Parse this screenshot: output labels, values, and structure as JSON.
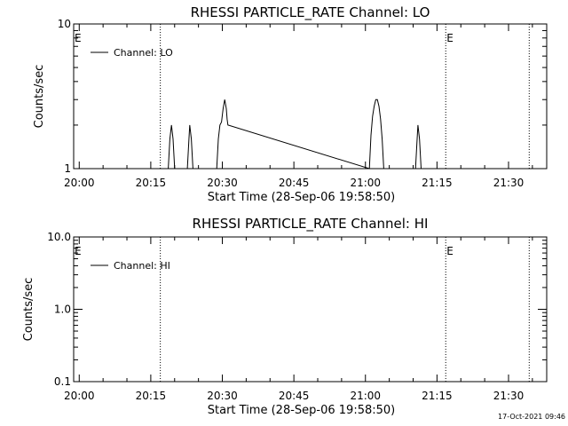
{
  "footer": {
    "timestamp": "17-Oct-2021 09:46"
  },
  "chart_data": [
    {
      "type": "line",
      "title": "RHESSI PARTICLE_RATE Channel: LO",
      "xlabel": "Start Time (28-Sep-06 19:58:50)",
      "ylabel": "Counts/sec",
      "y_scale": "log",
      "ylim": [
        1,
        10
      ],
      "y_ticks": [
        {
          "v": 1,
          "label": "1"
        },
        {
          "v": 10,
          "label": "10"
        }
      ],
      "xlim": [
        "19:58:50",
        "21:38:00"
      ],
      "x_ticks": [
        "20:00",
        "20:15",
        "20:30",
        "20:45",
        "21:00",
        "21:15",
        "21:30"
      ],
      "event_lines": [
        "20:17:00",
        "21:16:50",
        "21:34:20"
      ],
      "event_markers": [
        {
          "x": "19:58:50",
          "label": "E"
        },
        {
          "x": "21:16:50",
          "label": "E"
        }
      ],
      "series": [
        {
          "name": "Channel: LO",
          "color": "#000000",
          "points": [
            [
              "19:58:50",
              1
            ],
            [
              "20:18:40",
              1
            ],
            [
              "20:19:00",
              1.6
            ],
            [
              "20:19:20",
              2
            ],
            [
              "20:19:40",
              1.6
            ],
            [
              "20:20:00",
              1
            ],
            [
              "20:22:40",
              1
            ],
            [
              "20:23:00",
              1.6
            ],
            [
              "20:23:10",
              2
            ],
            [
              "20:23:30",
              1.6
            ],
            [
              "20:23:50",
              1
            ],
            [
              "20:28:50",
              1
            ],
            [
              "20:29:10",
              1.6
            ],
            [
              "20:29:30",
              2
            ],
            [
              "20:29:50",
              2.1
            ],
            [
              "20:30:10",
              2.6
            ],
            [
              "20:30:30",
              3
            ],
            [
              "20:30:50",
              2.6
            ],
            [
              "20:31:00",
              2.2
            ],
            [
              "20:31:10",
              2
            ],
            [
              "21:00:50",
              1
            ],
            [
              "21:01:10",
              1.7
            ],
            [
              "21:01:30",
              2.3
            ],
            [
              "21:01:50",
              2.7
            ],
            [
              "21:02:10",
              3
            ],
            [
              "21:02:30",
              3
            ],
            [
              "21:02:50",
              2.7
            ],
            [
              "21:03:10",
              2.2
            ],
            [
              "21:03:30",
              1.6
            ],
            [
              "21:03:50",
              1
            ],
            [
              "21:10:30",
              1
            ],
            [
              "21:10:50",
              1.6
            ],
            [
              "21:11:00",
              2
            ],
            [
              "21:11:20",
              1.6
            ],
            [
              "21:11:40",
              1
            ],
            [
              "21:38:00",
              1
            ]
          ]
        }
      ]
    },
    {
      "type": "line",
      "title": "RHESSI PARTICLE_RATE Channel: HI",
      "xlabel": "Start Time (28-Sep-06 19:58:50)",
      "ylabel": "Counts/sec",
      "y_scale": "log",
      "ylim": [
        0.1,
        10
      ],
      "y_ticks": [
        {
          "v": 0.1,
          "label": "0.1"
        },
        {
          "v": 1,
          "label": "1.0"
        },
        {
          "v": 10,
          "label": "10.0"
        }
      ],
      "xlim": [
        "19:58:50",
        "21:38:00"
      ],
      "x_ticks": [
        "20:00",
        "20:15",
        "20:30",
        "20:45",
        "21:00",
        "21:15",
        "21:30"
      ],
      "event_lines": [
        "20:17:00",
        "21:16:50",
        "21:34:20"
      ],
      "event_markers": [
        {
          "x": "19:58:50",
          "label": "E"
        },
        {
          "x": "21:16:50",
          "label": "E"
        }
      ],
      "series": [
        {
          "name": "Channel: HI",
          "color": "#000000",
          "points": []
        }
      ]
    }
  ]
}
